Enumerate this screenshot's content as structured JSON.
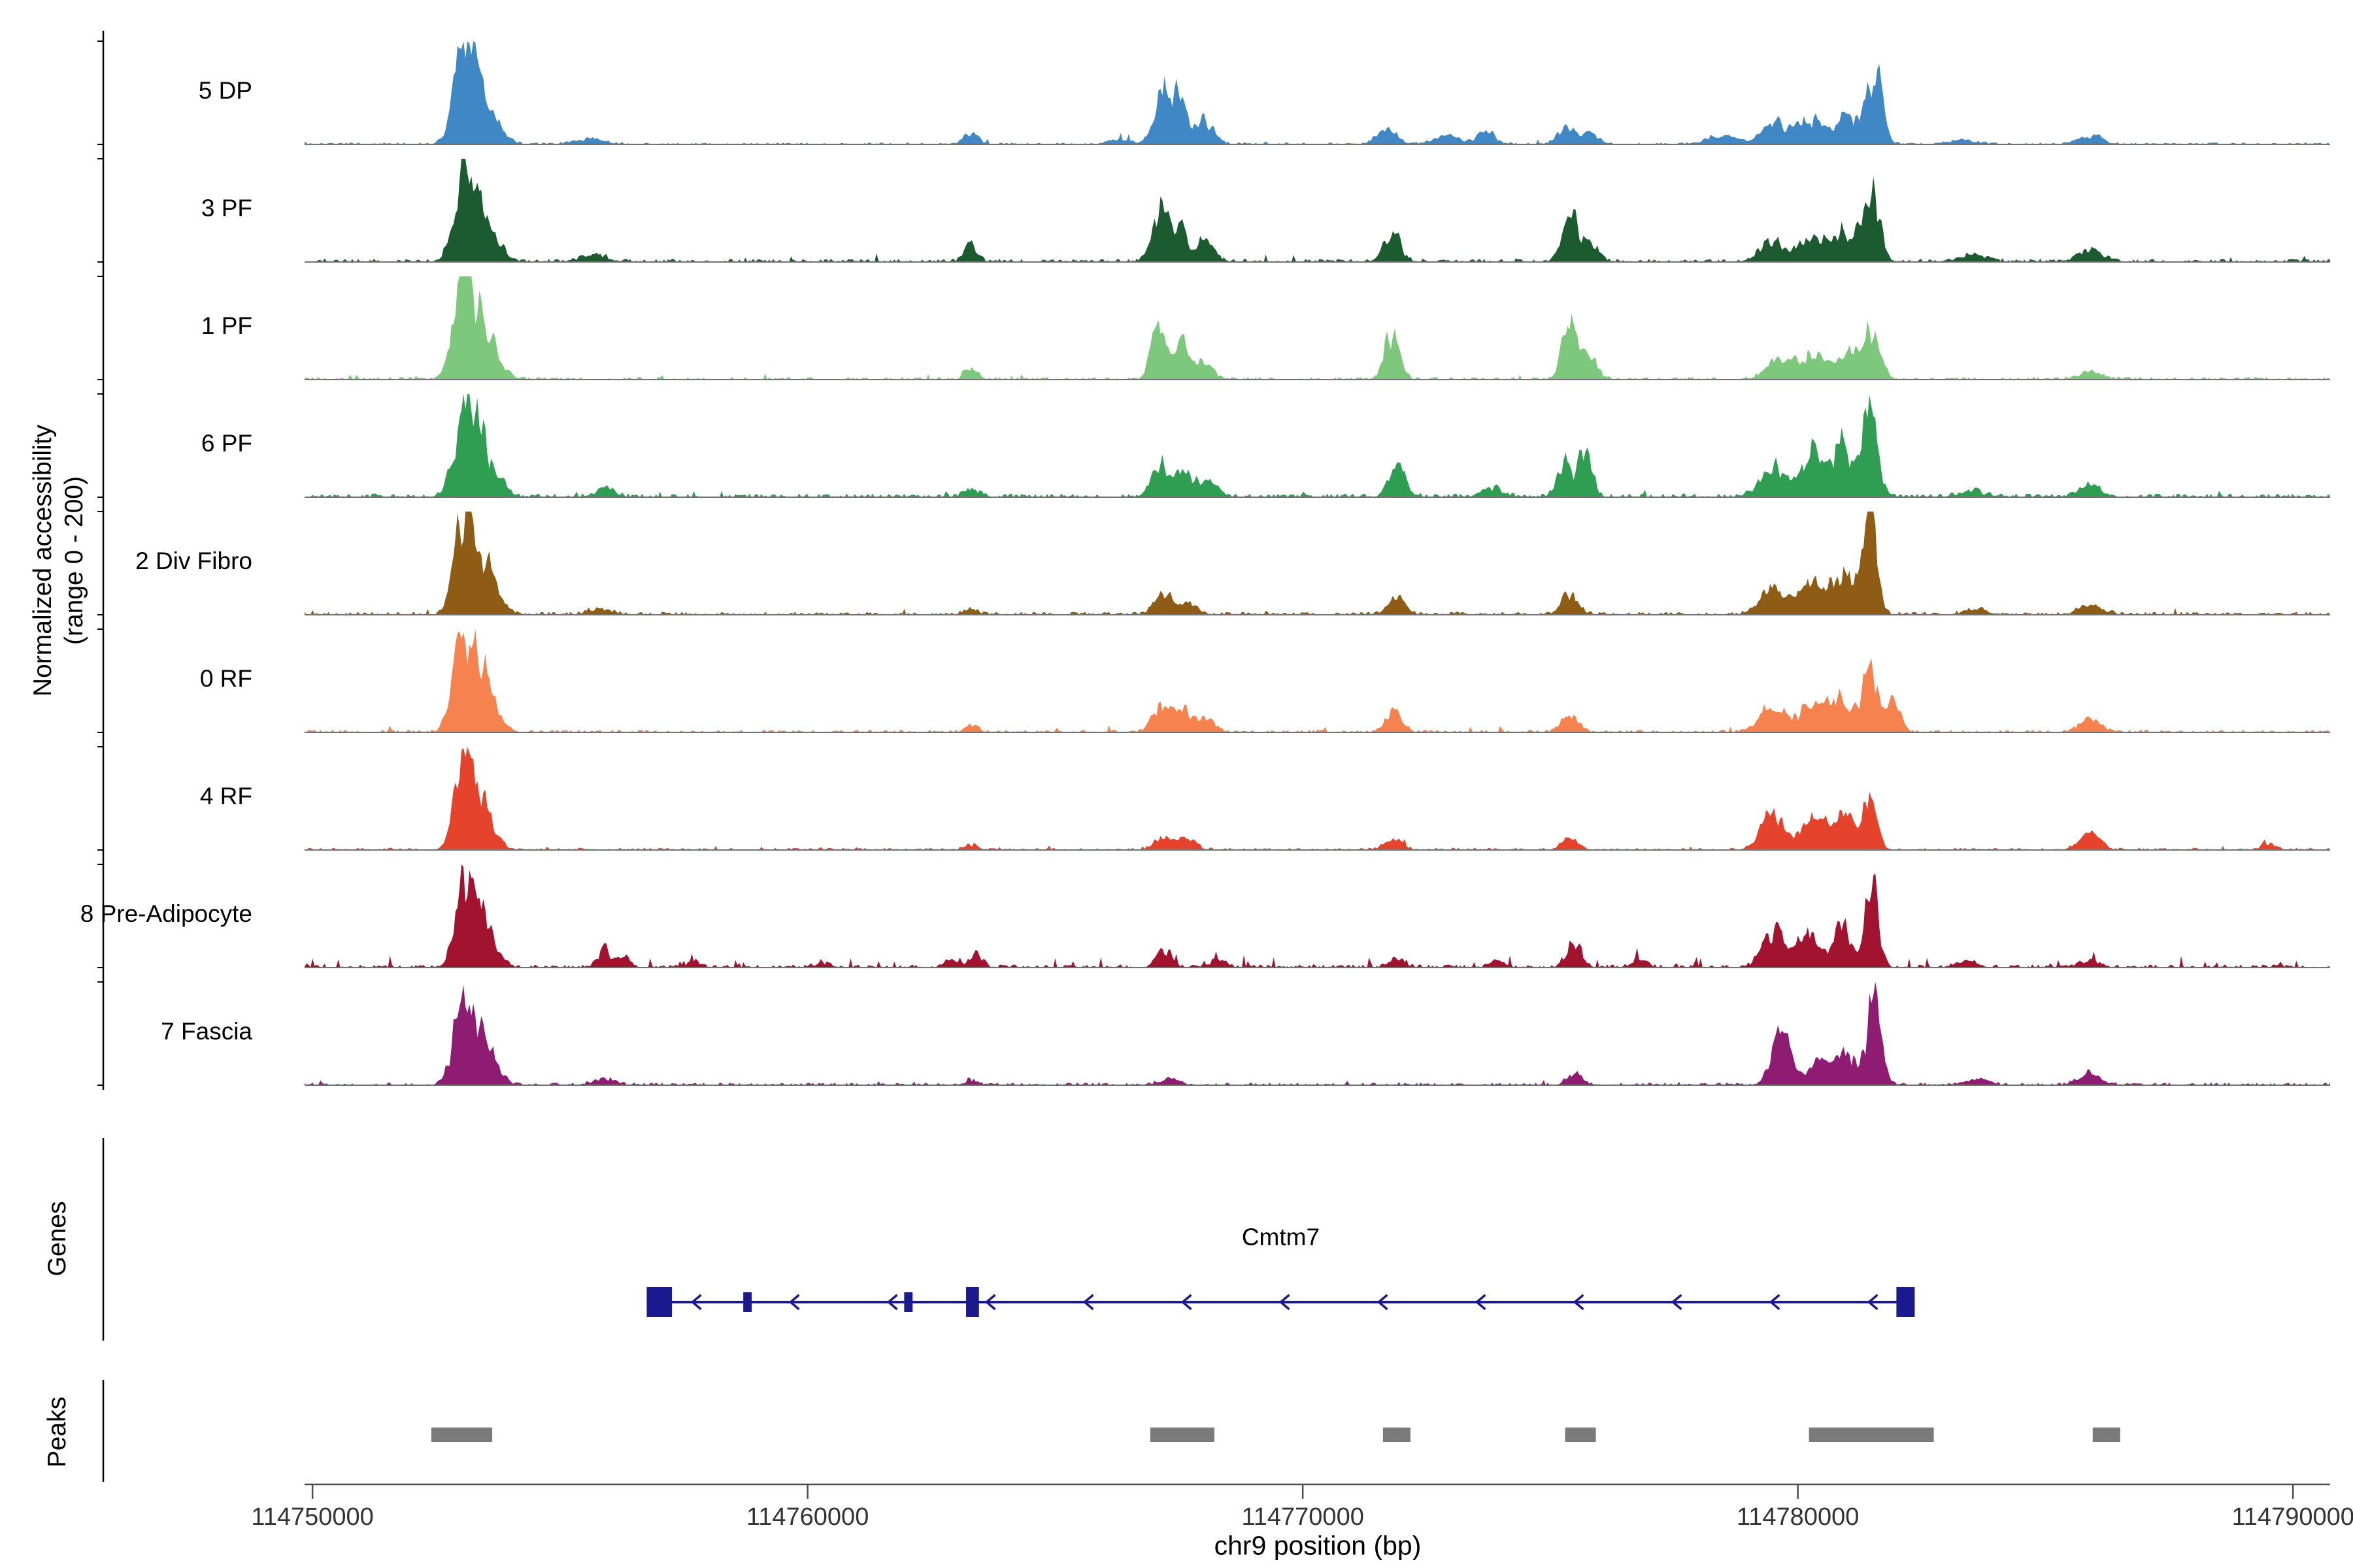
{
  "figure": {
    "y_axis_label_line1": "Normalized accessibility",
    "y_axis_label_line2": "(range 0 - 200)",
    "genes_section_label": "Genes",
    "peaks_section_label": "Peaks",
    "x_axis_label": "chr9 position (bp)"
  },
  "chart_data": {
    "type": "area",
    "title": "",
    "xlabel": "chr9 position (bp)",
    "ylabel": "Normalized accessibility (range 0 - 200)",
    "x_domain_bp": [
      114749840,
      114790750
    ],
    "x_ticks": [
      114750000,
      114760000,
      114770000,
      114780000,
      114790000
    ],
    "per_track_y_range": [
      0,
      200
    ],
    "grid": false,
    "legend_position": "none",
    "tracks": [
      {
        "label": "5 DP",
        "color": "#3f88c5",
        "seed": 11,
        "noise": 0.018,
        "spike_p": 0.012,
        "spike_a": 0.05,
        "peaks_bp_h_w": [
          [
            114753060,
            0.98,
            200
          ],
          [
            114753460,
            0.45,
            260
          ],
          [
            114755600,
            0.05,
            300
          ],
          [
            114763300,
            0.12,
            130
          ],
          [
            114766300,
            0.05,
            200
          ],
          [
            114767150,
            0.52,
            160
          ],
          [
            114767500,
            0.4,
            140
          ],
          [
            114768000,
            0.22,
            200
          ],
          [
            114771700,
            0.15,
            200
          ],
          [
            114772900,
            0.08,
            250
          ],
          [
            114773700,
            0.12,
            180
          ],
          [
            114775300,
            0.17,
            150
          ],
          [
            114775800,
            0.12,
            180
          ],
          [
            114778500,
            0.08,
            300
          ],
          [
            114779500,
            0.2,
            260
          ],
          [
            114780300,
            0.25,
            280
          ],
          [
            114781000,
            0.3,
            220
          ],
          [
            114781550,
            0.72,
            150
          ],
          [
            114783300,
            0.05,
            250
          ],
          [
            114785900,
            0.08,
            250
          ]
        ]
      },
      {
        "label": "3 PF",
        "color": "#1c5b2f",
        "seed": 22,
        "noise": 0.03,
        "spike_p": 0.02,
        "spike_a": 0.06,
        "peaks_bp_h_w": [
          [
            114753060,
            0.82,
            200
          ],
          [
            114753480,
            0.4,
            260
          ],
          [
            114755700,
            0.06,
            250
          ],
          [
            114763300,
            0.16,
            130
          ],
          [
            114767100,
            0.45,
            160
          ],
          [
            114767500,
            0.33,
            140
          ],
          [
            114768000,
            0.18,
            200
          ],
          [
            114771800,
            0.28,
            170
          ],
          [
            114775400,
            0.4,
            160
          ],
          [
            114775800,
            0.15,
            180
          ],
          [
            114779500,
            0.18,
            260
          ],
          [
            114780300,
            0.22,
            280
          ],
          [
            114781000,
            0.3,
            220
          ],
          [
            114781500,
            0.62,
            160
          ],
          [
            114783500,
            0.06,
            300
          ],
          [
            114785900,
            0.12,
            220
          ]
        ]
      },
      {
        "label": "1 PF",
        "color": "#7dc87c",
        "seed": 33,
        "noise": 0.025,
        "spike_p": 0.015,
        "spike_a": 0.05,
        "peaks_bp_h_w": [
          [
            114753060,
            0.92,
            200
          ],
          [
            114753480,
            0.42,
            260
          ],
          [
            114763300,
            0.1,
            130
          ],
          [
            114767100,
            0.5,
            150
          ],
          [
            114767550,
            0.35,
            140
          ],
          [
            114768000,
            0.15,
            180
          ],
          [
            114771800,
            0.45,
            150
          ],
          [
            114775400,
            0.55,
            150
          ],
          [
            114775800,
            0.18,
            160
          ],
          [
            114779600,
            0.16,
            240
          ],
          [
            114780300,
            0.25,
            280
          ],
          [
            114781000,
            0.28,
            200
          ],
          [
            114781500,
            0.52,
            160
          ],
          [
            114785900,
            0.08,
            220
          ]
        ]
      },
      {
        "label": "6 PF",
        "color": "#2f9e53",
        "seed": 44,
        "noise": 0.035,
        "spike_p": 0.02,
        "spike_a": 0.06,
        "peaks_bp_h_w": [
          [
            114753060,
            0.88,
            200
          ],
          [
            114753480,
            0.4,
            260
          ],
          [
            114755900,
            0.07,
            200
          ],
          [
            114763300,
            0.08,
            130
          ],
          [
            114767100,
            0.32,
            160
          ],
          [
            114767600,
            0.28,
            150
          ],
          [
            114768100,
            0.15,
            180
          ],
          [
            114771900,
            0.3,
            160
          ],
          [
            114773800,
            0.1,
            200
          ],
          [
            114775300,
            0.3,
            150
          ],
          [
            114775700,
            0.42,
            140
          ],
          [
            114779500,
            0.28,
            260
          ],
          [
            114780300,
            0.4,
            260
          ],
          [
            114780900,
            0.45,
            200
          ],
          [
            114781450,
            0.92,
            150
          ],
          [
            114783500,
            0.06,
            250
          ],
          [
            114785900,
            0.1,
            220
          ]
        ]
      },
      {
        "label": "2 Div Fibro",
        "color": "#8e5c15",
        "seed": 55,
        "noise": 0.03,
        "spike_p": 0.02,
        "spike_a": 0.05,
        "peaks_bp_h_w": [
          [
            114753080,
            1.0,
            190
          ],
          [
            114753480,
            0.45,
            240
          ],
          [
            114755800,
            0.05,
            250
          ],
          [
            114763300,
            0.06,
            130
          ],
          [
            114767200,
            0.2,
            180
          ],
          [
            114767700,
            0.12,
            160
          ],
          [
            114771900,
            0.16,
            170
          ],
          [
            114775400,
            0.2,
            160
          ],
          [
            114779500,
            0.25,
            260
          ],
          [
            114780300,
            0.32,
            260
          ],
          [
            114780900,
            0.38,
            200
          ],
          [
            114781450,
            0.98,
            140
          ],
          [
            114783600,
            0.05,
            250
          ],
          [
            114785900,
            0.1,
            220
          ]
        ]
      },
      {
        "label": "0 RF",
        "color": "#f5824f",
        "seed": 66,
        "noise": 0.025,
        "spike_p": 0.015,
        "spike_a": 0.05,
        "peaks_bp_h_w": [
          [
            114753060,
            0.92,
            200
          ],
          [
            114753450,
            0.45,
            250
          ],
          [
            114763300,
            0.07,
            130
          ],
          [
            114767150,
            0.28,
            170
          ],
          [
            114767600,
            0.22,
            150
          ],
          [
            114768050,
            0.12,
            180
          ],
          [
            114771850,
            0.22,
            160
          ],
          [
            114775400,
            0.16,
            170
          ],
          [
            114779500,
            0.22,
            260
          ],
          [
            114780300,
            0.3,
            260
          ],
          [
            114780900,
            0.35,
            200
          ],
          [
            114781450,
            0.58,
            150
          ],
          [
            114781900,
            0.3,
            150
          ],
          [
            114785900,
            0.12,
            220
          ]
        ]
      },
      {
        "label": "4 RF",
        "color": "#e6432c",
        "seed": 77,
        "noise": 0.022,
        "spike_p": 0.015,
        "spike_a": 0.05,
        "peaks_bp_h_w": [
          [
            114753060,
            0.82,
            180
          ],
          [
            114753420,
            0.4,
            230
          ],
          [
            114763300,
            0.05,
            130
          ],
          [
            114767200,
            0.12,
            180
          ],
          [
            114767700,
            0.1,
            160
          ],
          [
            114771850,
            0.1,
            170
          ],
          [
            114775400,
            0.1,
            170
          ],
          [
            114779500,
            0.32,
            240
          ],
          [
            114780300,
            0.28,
            260
          ],
          [
            114780900,
            0.4,
            200
          ],
          [
            114781450,
            0.48,
            150
          ],
          [
            114785900,
            0.16,
            200
          ],
          [
            114789500,
            0.07,
            150
          ]
        ]
      },
      {
        "label": "8 Pre-Adipocyte",
        "color": "#a21330",
        "seed": 88,
        "noise": 0.03,
        "spike_p": 0.05,
        "spike_a": 0.1,
        "peaks_bp_h_w": [
          [
            114753080,
            0.82,
            180
          ],
          [
            114753450,
            0.42,
            230
          ],
          [
            114755900,
            0.18,
            120
          ],
          [
            114756300,
            0.12,
            110
          ],
          [
            114757700,
            0.07,
            130
          ],
          [
            114760300,
            0.05,
            150
          ],
          [
            114762900,
            0.1,
            120
          ],
          [
            114763400,
            0.13,
            120
          ],
          [
            114767200,
            0.18,
            140
          ],
          [
            114768300,
            0.07,
            150
          ],
          [
            114771900,
            0.08,
            150
          ],
          [
            114773900,
            0.06,
            150
          ],
          [
            114775500,
            0.22,
            140
          ],
          [
            114776800,
            0.08,
            140
          ],
          [
            114779500,
            0.32,
            220
          ],
          [
            114780200,
            0.28,
            240
          ],
          [
            114780900,
            0.4,
            180
          ],
          [
            114781500,
            0.88,
            130
          ],
          [
            114783400,
            0.07,
            200
          ],
          [
            114785900,
            0.07,
            200
          ]
        ]
      },
      {
        "label": "7 Fascia",
        "color": "#8d1c72",
        "seed": 99,
        "noise": 0.025,
        "spike_p": 0.02,
        "spike_a": 0.05,
        "peaks_bp_h_w": [
          [
            114753060,
            0.88,
            190
          ],
          [
            114753450,
            0.42,
            240
          ],
          [
            114755900,
            0.06,
            200
          ],
          [
            114763300,
            0.05,
            130
          ],
          [
            114767300,
            0.07,
            180
          ],
          [
            114775500,
            0.1,
            160
          ],
          [
            114779650,
            0.72,
            170
          ],
          [
            114780400,
            0.22,
            240
          ],
          [
            114781000,
            0.3,
            200
          ],
          [
            114781550,
            0.82,
            150
          ],
          [
            114783600,
            0.06,
            250
          ],
          [
            114785900,
            0.12,
            220
          ]
        ]
      }
    ],
    "gene_track": {
      "label": "Genes",
      "gene": {
        "name": "Cmtm7",
        "strand": "-",
        "start_bp": 114756750,
        "end_bp": 114782360,
        "color": "#1a1a8e",
        "exons": [
          {
            "start_bp": 114756750,
            "end_bp": 114757260,
            "tall": true
          },
          {
            "start_bp": 114758700,
            "end_bp": 114758870,
            "tall": false
          },
          {
            "start_bp": 114761950,
            "end_bp": 114762120,
            "tall": false
          },
          {
            "start_bp": 114763200,
            "end_bp": 114763460,
            "tall": true
          },
          {
            "start_bp": 114781990,
            "end_bp": 114782360,
            "tall": true
          }
        ]
      }
    },
    "peaks_track": {
      "label": "Peaks",
      "color": "#7a7a7a",
      "regions_bp": [
        [
          114752400,
          114753630
        ],
        [
          114766920,
          114768215
        ],
        [
          114771620,
          114772175
        ],
        [
          114775300,
          114775920
        ],
        [
          114780225,
          114782745
        ],
        [
          114785955,
          114786510
        ]
      ]
    }
  }
}
